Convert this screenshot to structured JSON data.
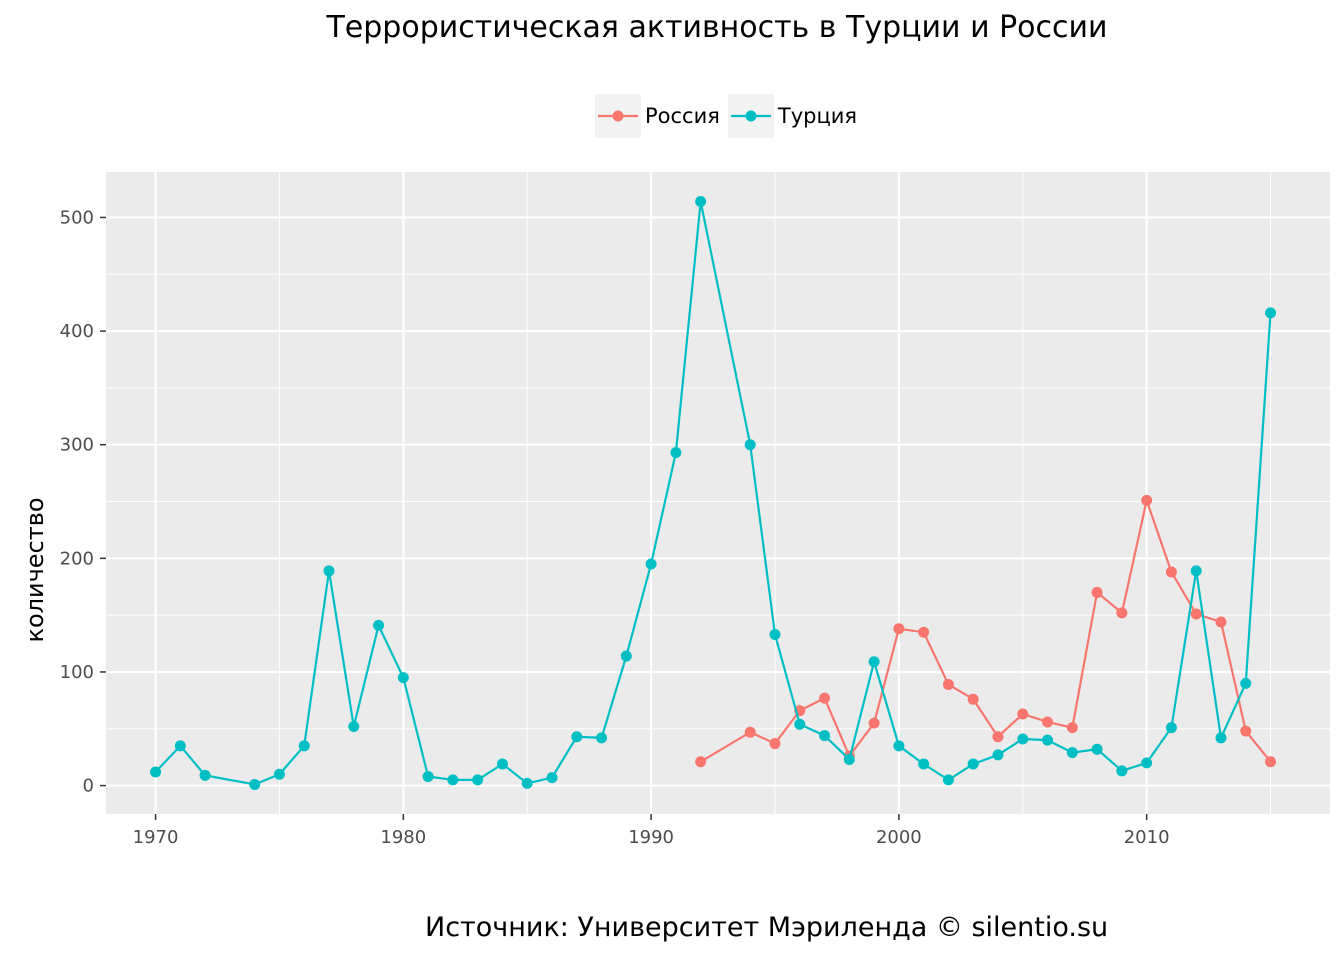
{
  "title": "Террористическая активность в Турции и России",
  "caption": "Источник: Университет Мэриленда © silentio.su",
  "ylabel": "количество",
  "legend": [
    {
      "name": "Россия",
      "color": "#F8766D"
    },
    {
      "name": "Турция",
      "color": "#00BFC4"
    }
  ],
  "chart_data": {
    "type": "line",
    "title": "Террористическая активность в Турции и России",
    "xlabel": "",
    "ylabel": "количество",
    "xlim": [
      1968,
      2017.4
    ],
    "ylim": [
      -25,
      540
    ],
    "x_ticks": [
      1970,
      1980,
      1990,
      2000,
      2010
    ],
    "y_ticks": [
      0,
      100,
      200,
      300,
      400,
      500
    ],
    "grid": true,
    "legend_position": "top",
    "series": [
      {
        "name": "Россия",
        "color": "#F8766D",
        "points": [
          [
            1992,
            21
          ],
          [
            1994,
            47
          ],
          [
            1995,
            37
          ],
          [
            1996,
            66
          ],
          [
            1997,
            77
          ],
          [
            1998,
            26
          ],
          [
            1999,
            55
          ],
          [
            2000,
            138
          ],
          [
            2001,
            135
          ],
          [
            2002,
            89
          ],
          [
            2003,
            76
          ],
          [
            2004,
            43
          ],
          [
            2005,
            63
          ],
          [
            2006,
            56
          ],
          [
            2007,
            51
          ],
          [
            2008,
            170
          ],
          [
            2009,
            152
          ],
          [
            2010,
            251
          ],
          [
            2011,
            188
          ],
          [
            2012,
            151
          ],
          [
            2013,
            144
          ],
          [
            2014,
            48
          ],
          [
            2015,
            21
          ]
        ]
      },
      {
        "name": "Турция",
        "color": "#00BFC4",
        "points": [
          [
            1970,
            12
          ],
          [
            1971,
            35
          ],
          [
            1972,
            9
          ],
          [
            1974,
            1
          ],
          [
            1975,
            10
          ],
          [
            1976,
            35
          ],
          [
            1977,
            189
          ],
          [
            1978,
            52
          ],
          [
            1979,
            141
          ],
          [
            1980,
            95
          ],
          [
            1981,
            8
          ],
          [
            1982,
            5
          ],
          [
            1983,
            5
          ],
          [
            1984,
            19
          ],
          [
            1985,
            2
          ],
          [
            1986,
            7
          ],
          [
            1987,
            43
          ],
          [
            1988,
            42
          ],
          [
            1989,
            114
          ],
          [
            1990,
            195
          ],
          [
            1991,
            293
          ],
          [
            1992,
            514
          ],
          [
            1994,
            300
          ],
          [
            1995,
            133
          ],
          [
            1996,
            54
          ],
          [
            1997,
            44
          ],
          [
            1998,
            23
          ],
          [
            1999,
            109
          ],
          [
            2000,
            35
          ],
          [
            2001,
            19
          ],
          [
            2002,
            5
          ],
          [
            2003,
            19
          ],
          [
            2004,
            27
          ],
          [
            2005,
            41
          ],
          [
            2006,
            40
          ],
          [
            2007,
            29
          ],
          [
            2008,
            32
          ],
          [
            2009,
            13
          ],
          [
            2010,
            20
          ],
          [
            2011,
            51
          ],
          [
            2012,
            189
          ],
          [
            2013,
            42
          ],
          [
            2014,
            90
          ],
          [
            2015,
            416
          ]
        ]
      }
    ]
  }
}
